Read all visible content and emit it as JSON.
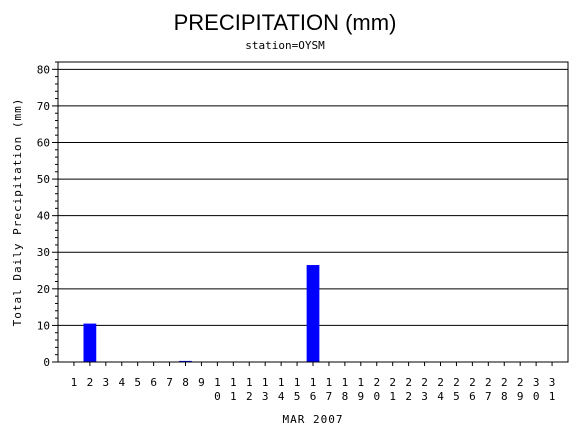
{
  "chart_data": {
    "type": "bar",
    "title": "PRECIPITATION (mm)",
    "subtitle": "station=OYSM",
    "xlabel": "MAR 2007",
    "ylabel": "Total Daily Precipitation (mm)",
    "ylim": [
      0,
      82
    ],
    "yticks": [
      0,
      10,
      20,
      30,
      40,
      50,
      60,
      70,
      80
    ],
    "grid": true,
    "bar_color": "#0000ff",
    "categories": [
      "1",
      "2",
      "3",
      "4",
      "5",
      "6",
      "7",
      "8",
      "9",
      "10",
      "11",
      "12",
      "13",
      "14",
      "15",
      "16",
      "17",
      "18",
      "19",
      "20",
      "21",
      "22",
      "23",
      "24",
      "25",
      "26",
      "27",
      "28",
      "29",
      "30",
      "31"
    ],
    "values": [
      0,
      10.5,
      0,
      0,
      0,
      0,
      0,
      0.3,
      0,
      0,
      0,
      0,
      0,
      0,
      0,
      26.5,
      0,
      0,
      0,
      0,
      0,
      0,
      0,
      0,
      0,
      0,
      0,
      0,
      0,
      0,
      0
    ]
  }
}
